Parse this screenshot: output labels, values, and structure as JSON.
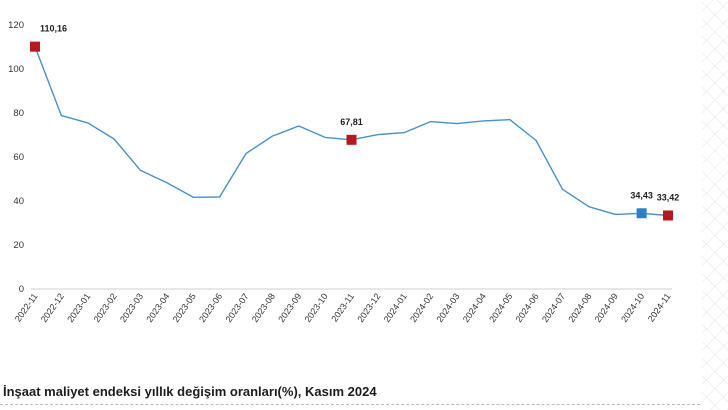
{
  "chart_data": {
    "type": "line",
    "title": "",
    "xlabel": "",
    "ylabel": "",
    "ylim": [
      0,
      120
    ],
    "yticks": [
      0,
      20,
      40,
      60,
      80,
      100,
      120
    ],
    "grid": false,
    "categories": [
      "2022-11",
      "2022-12",
      "2023-01",
      "2023-02",
      "2023-03",
      "2023-04",
      "2023-05",
      "2023-06",
      "2023-07",
      "2023-08",
      "2023-09",
      "2023-10",
      "2023-11",
      "2023-12",
      "2024-01",
      "2024-02",
      "2024-03",
      "2024-04",
      "2024-05",
      "2024-06",
      "2024-07",
      "2024-08",
      "2024-09",
      "2024-10",
      "2024-11"
    ],
    "series": [
      {
        "values": [
          110.16,
          78.8,
          75.5,
          68.2,
          53.9,
          48.3,
          41.7,
          41.8,
          61.6,
          69.5,
          74.1,
          68.9,
          67.81,
          70.2,
          71.1,
          76.1,
          75.2,
          76.4,
          77.0,
          67.5,
          45.3,
          37.4,
          33.9,
          34.43,
          33.42
        ],
        "color": "#4a90c8"
      }
    ],
    "data_labels": [
      {
        "index": 0,
        "text": "110,16"
      },
      {
        "index": 12,
        "text": "67,81"
      },
      {
        "index": 23,
        "text": "34,43"
      },
      {
        "index": 24,
        "text": "33,42"
      }
    ],
    "markers": [
      {
        "index": 0,
        "color": "#b3191e"
      },
      {
        "index": 12,
        "color": "#b3191e"
      },
      {
        "index": 23,
        "color": "#2f7fc5"
      },
      {
        "index": 24,
        "color": "#b3191e"
      }
    ]
  },
  "footer": {
    "caption": "İnşaat maliyet endeksi yıllık değişim oranları(%), Kasım 2024"
  }
}
